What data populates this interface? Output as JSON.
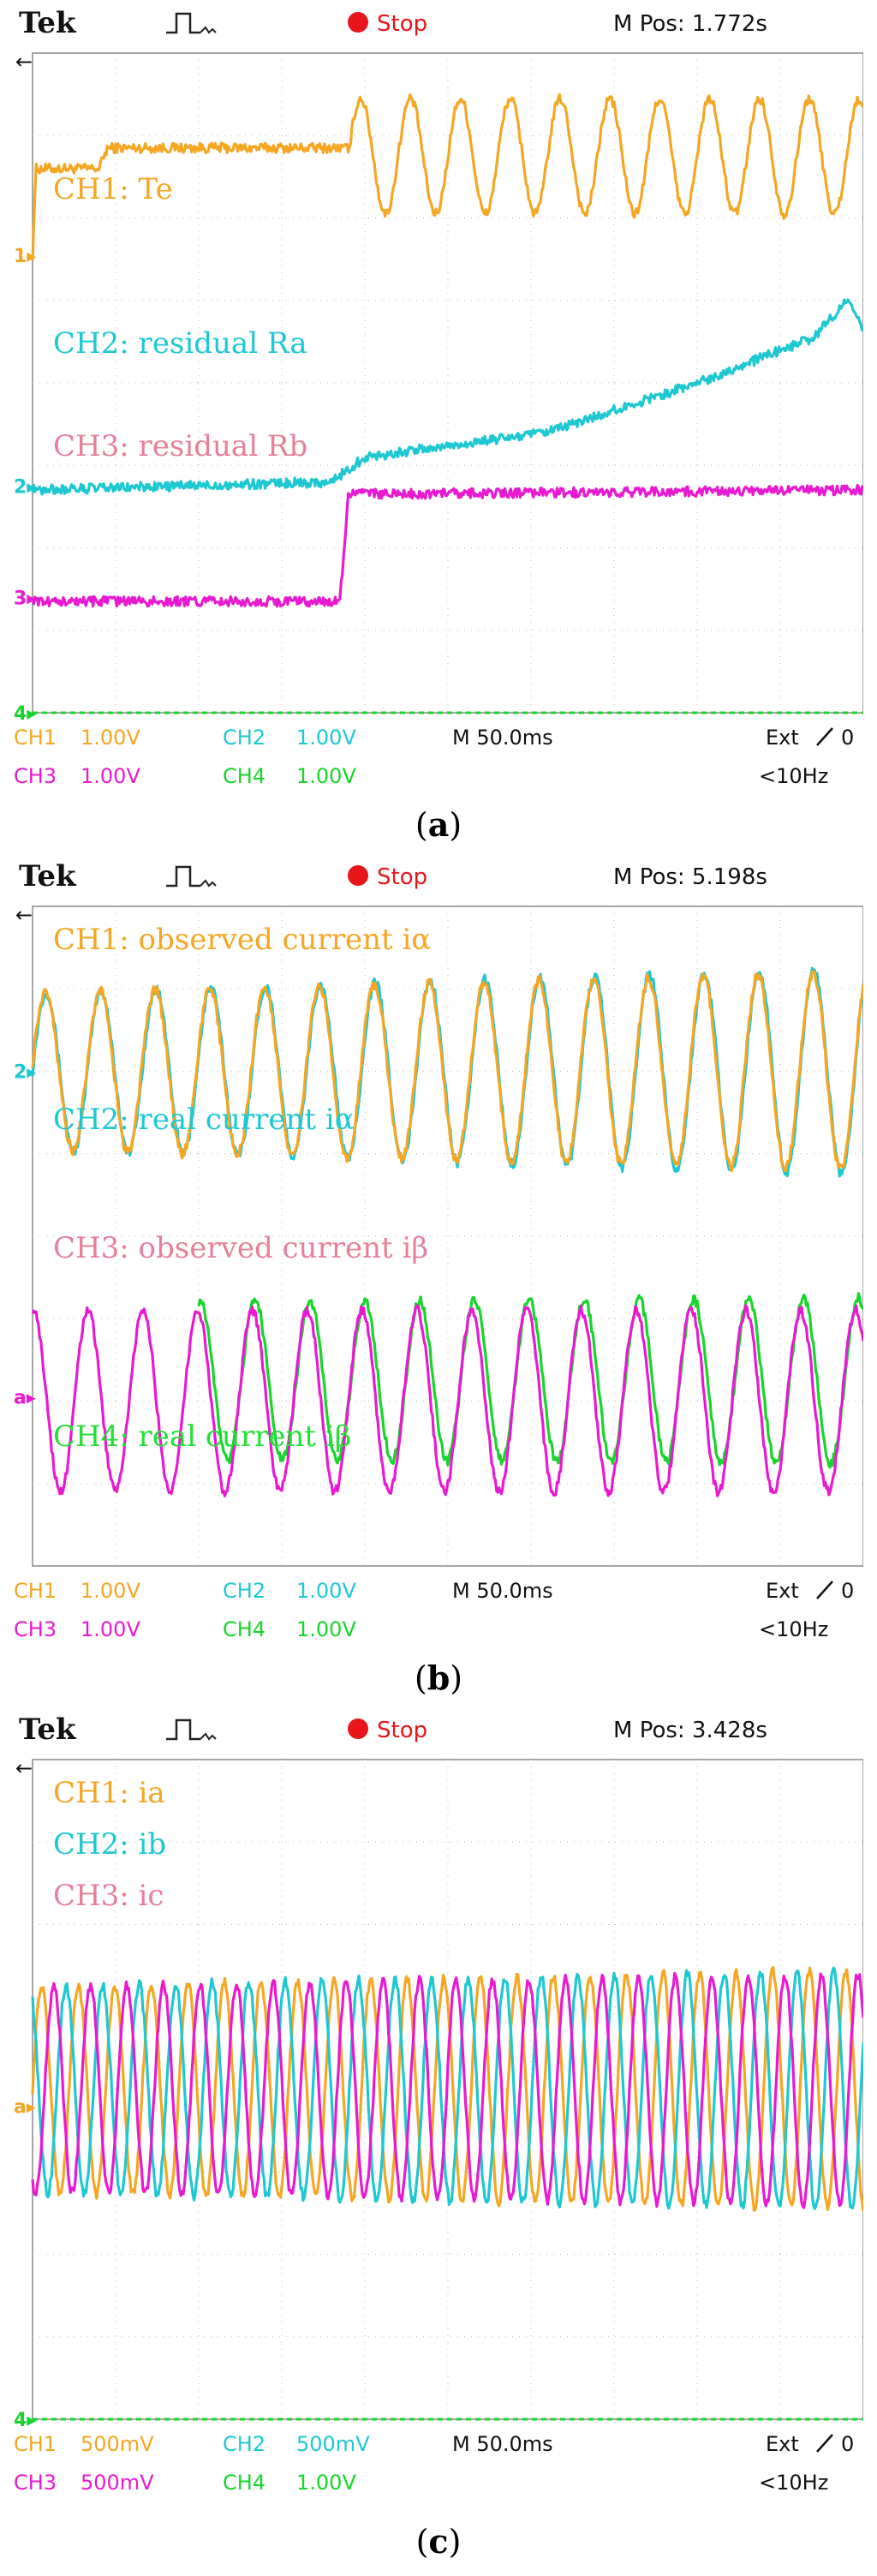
{
  "panels": [
    {
      "id": "a",
      "caption_letter": "a",
      "brand": "Tek",
      "status": "Stop",
      "mpos": "M Pos: 1.772s",
      "status_bar": {
        "ch1": "CH1",
        "ch1_scale": "1.00V",
        "ch2": "CH2",
        "ch2_scale": "1.00V",
        "ch3": "CH3",
        "ch3_scale": "1.00V",
        "ch4": "CH4",
        "ch4_scale": "1.00V",
        "timebase": "M 50.0ms",
        "trigger": "Ext",
        "trigger_level": "0",
        "freq": "<10Hz"
      },
      "markers": [
        {
          "label": "1",
          "color": "#f5a623",
          "level": 1.55
        },
        {
          "label": "2",
          "color": "#1ec8d2",
          "level": -1.25
        },
        {
          "label": "3",
          "color": "#e81ad1",
          "level": -2.6
        },
        {
          "label": "4",
          "color": "#17d52a",
          "level": -4.0
        }
      ],
      "labels": [
        {
          "text": "CH1: Te",
          "color": "#f5a623"
        },
        {
          "text": "CH2: residual Ra",
          "color": "#1ec8d2"
        },
        {
          "text": "CH3: residual Rb",
          "color": "#e87f9a"
        }
      ],
      "chart_data": {
        "type": "line",
        "xlim": [
          0,
          500
        ],
        "ylim": [
          -4,
          4
        ],
        "x_unit": "ms",
        "series": [
          {
            "color": "#f5a623",
            "kind": "step-sine",
            "points": [
              [
                0,
                1.55
              ],
              [
                2,
                2.6
              ],
              [
                40,
                2.6
              ],
              [
                45,
                2.85
              ],
              [
                190,
                2.85
              ]
            ],
            "oscillation": {
              "start": 190,
              "end": 500,
              "center": 2.75,
              "amplitude": 0.7,
              "period_ms": 30
            }
          },
          {
            "color": "#1ec8d2",
            "kind": "ramp",
            "points": [
              [
                0,
                -1.3
              ],
              [
                180,
                -1.2
              ],
              [
                200,
                -0.9
              ],
              [
                310,
                -0.6
              ],
              [
                400,
                0.0
              ],
              [
                470,
                0.55
              ],
              [
                490,
                1.0
              ],
              [
                500,
                0.65
              ]
            ]
          },
          {
            "color": "#e81ad1",
            "kind": "step",
            "points": [
              [
                0,
                -2.65
              ],
              [
                185,
                -2.65
              ],
              [
                190,
                -1.35
              ],
              [
                500,
                -1.3
              ]
            ]
          },
          {
            "color": "#17d52a",
            "kind": "flat",
            "points": [
              [
                0,
                -4.0
              ],
              [
                500,
                -4.0
              ]
            ]
          }
        ]
      }
    },
    {
      "id": "b",
      "caption_letter": "b",
      "brand": "Tek",
      "status": "Stop",
      "mpos": "M Pos: 5.198s",
      "status_bar": {
        "ch1": "CH1",
        "ch1_scale": "1.00V",
        "ch2": "CH2",
        "ch2_scale": "1.00V",
        "ch3": "CH3",
        "ch3_scale": "1.00V",
        "ch4": "CH4",
        "ch4_scale": "1.00V",
        "timebase": "M 50.0ms",
        "trigger": "Ext",
        "trigger_level": "0",
        "freq": "<10Hz"
      },
      "markers": [
        {
          "label": "2",
          "color": "#1ec8d2",
          "level": 2.0
        },
        {
          "label": "a",
          "color": "#e81ad1",
          "level": -1.95
        }
      ],
      "labels": [
        {
          "text": "CH1: observed current iα",
          "color": "#f5a623"
        },
        {
          "text": "CH2: real current iα",
          "color": "#1ec8d2"
        },
        {
          "text": "CH3: observed current iβ",
          "color": "#e87f9a"
        },
        {
          "text": "CH4: real current iβ",
          "color": "#22e035"
        }
      ],
      "chart_data": {
        "type": "line",
        "xlim": [
          0,
          500
        ],
        "ylim": [
          -4,
          4
        ],
        "x_unit": "ms",
        "series": [
          {
            "color": "#1ec8d2",
            "kind": "sine",
            "center": 2.0,
            "amplitude": 0.95,
            "amplitude_end": 1.25,
            "period_ms": 33,
            "phase": 0.0
          },
          {
            "color": "#f5a623",
            "kind": "sine",
            "center": 2.0,
            "amplitude": 0.95,
            "amplitude_end": 1.2,
            "period_ms": 33,
            "phase": 0.1
          },
          {
            "color": "#17d52a",
            "kind": "sine",
            "center": -1.75,
            "amplitude": 0.95,
            "amplitude_end": 1.0,
            "period_ms": 33,
            "phase": 1.2,
            "start": 100
          },
          {
            "color": "#e81ad1",
            "kind": "sine",
            "center": -2.0,
            "amplitude": 1.1,
            "amplitude_end": 1.1,
            "period_ms": 33,
            "phase": 1.5
          }
        ]
      }
    },
    {
      "id": "c",
      "caption_letter": "c",
      "brand": "Tek",
      "status": "Stop",
      "mpos": "M Pos: 3.428s",
      "status_bar": {
        "ch1": "CH1",
        "ch1_scale": "500mV",
        "ch2": "CH2",
        "ch2_scale": "500mV",
        "ch3": "CH3",
        "ch3_scale": "500mV",
        "ch4": "CH4",
        "ch4_scale": "1.00V",
        "timebase": "M 50.0ms",
        "trigger": "Ext",
        "trigger_level": "0",
        "freq": "<10Hz"
      },
      "markers": [
        {
          "label": "a",
          "color": "#f5a623",
          "level": -0.2
        },
        {
          "label": "4",
          "color": "#17d52a",
          "level": -4.0
        }
      ],
      "labels": [
        {
          "text": "CH1: ia",
          "color": "#f5a623"
        },
        {
          "text": "CH2: ib",
          "color": "#1ec8d2"
        },
        {
          "text": "CH3: ic",
          "color": "#e87f9a"
        }
      ],
      "chart_data": {
        "type": "line",
        "xlim": [
          0,
          500
        ],
        "ylim": [
          -4,
          4
        ],
        "x_unit": "ms",
        "series": [
          {
            "color": "#f5a623",
            "kind": "sine",
            "center": 0.0,
            "amplitude": 1.25,
            "amplitude_end": 1.45,
            "period_ms": 22,
            "phase": 0.0
          },
          {
            "color": "#1ec8d2",
            "kind": "sine",
            "center": 0.0,
            "amplitude": 1.25,
            "amplitude_end": 1.45,
            "period_ms": 22,
            "phase": 2.094
          },
          {
            "color": "#e81ad1",
            "kind": "sine",
            "center": 0.0,
            "amplitude": 1.25,
            "amplitude_end": 1.4,
            "period_ms": 22,
            "phase": 4.189
          },
          {
            "color": "#17d52a",
            "kind": "flat",
            "points": [
              [
                0,
                -4.0
              ],
              [
                500,
                -4.0
              ]
            ]
          }
        ]
      }
    }
  ]
}
